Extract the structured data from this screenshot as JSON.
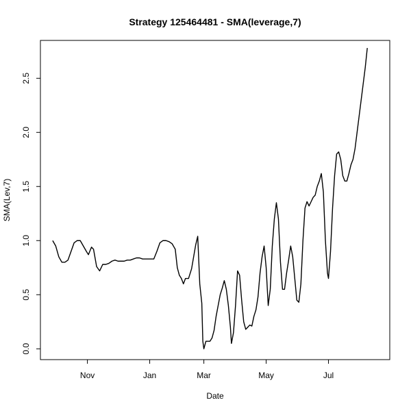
{
  "chart_data": {
    "type": "line",
    "title": "Strategy 125464481 - SMA(leverage,7)",
    "xlabel": "Date",
    "ylabel": "SMA(Lev,7)",
    "x_ticks": [
      "Nov",
      "Jan",
      "Mar",
      "May",
      "Jul"
    ],
    "y_ticks": [
      "0.0",
      "0.5",
      "1.0",
      "1.5",
      "2.0",
      "2.5"
    ],
    "ylim": [
      -0.1,
      2.85
    ],
    "grid": false,
    "series": [
      {
        "values": [
          [
            0,
            1.0
          ],
          [
            3,
            0.95
          ],
          [
            6,
            0.85
          ],
          [
            9,
            0.8
          ],
          [
            12,
            0.8
          ],
          [
            15,
            0.82
          ],
          [
            18,
            0.9
          ],
          [
            21,
            0.98
          ],
          [
            24,
            1.0
          ],
          [
            27,
            1.0
          ],
          [
            30,
            0.95
          ],
          [
            33,
            0.9
          ],
          [
            35,
            0.87
          ],
          [
            38,
            0.94
          ],
          [
            40,
            0.92
          ],
          [
            43,
            0.76
          ],
          [
            46,
            0.72
          ],
          [
            49,
            0.78
          ],
          [
            52,
            0.78
          ],
          [
            55,
            0.79
          ],
          [
            58,
            0.81
          ],
          [
            61,
            0.82
          ],
          [
            64,
            0.81
          ],
          [
            67,
            0.81
          ],
          [
            70,
            0.81
          ],
          [
            73,
            0.82
          ],
          [
            76,
            0.82
          ],
          [
            79,
            0.83
          ],
          [
            82,
            0.84
          ],
          [
            85,
            0.84
          ],
          [
            88,
            0.83
          ],
          [
            91,
            0.83
          ],
          [
            94,
            0.83
          ],
          [
            97,
            0.83
          ],
          [
            99,
            0.83
          ],
          [
            102,
            0.9
          ],
          [
            105,
            0.98
          ],
          [
            108,
            1.0
          ],
          [
            111,
            1.0
          ],
          [
            114,
            0.99
          ],
          [
            117,
            0.97
          ],
          [
            120,
            0.92
          ],
          [
            122,
            0.75
          ],
          [
            124,
            0.68
          ],
          [
            126,
            0.65
          ],
          [
            128,
            0.6
          ],
          [
            130,
            0.65
          ],
          [
            133,
            0.65
          ],
          [
            136,
            0.74
          ],
          [
            138,
            0.85
          ],
          [
            140,
            0.96
          ],
          [
            142,
            1.04
          ],
          [
            144,
            0.6
          ],
          [
            146,
            0.42
          ],
          [
            147,
            0.07
          ],
          [
            148,
            0.0
          ],
          [
            150,
            0.07
          ],
          [
            152,
            0.07
          ],
          [
            154,
            0.07
          ],
          [
            156,
            0.1
          ],
          [
            158,
            0.17
          ],
          [
            160,
            0.3
          ],
          [
            162,
            0.4
          ],
          [
            164,
            0.5
          ],
          [
            166,
            0.56
          ],
          [
            168,
            0.63
          ],
          [
            170,
            0.55
          ],
          [
            172,
            0.4
          ],
          [
            174,
            0.2
          ],
          [
            175,
            0.05
          ],
          [
            177,
            0.15
          ],
          [
            179,
            0.4
          ],
          [
            181,
            0.72
          ],
          [
            183,
            0.68
          ],
          [
            185,
            0.45
          ],
          [
            187,
            0.25
          ],
          [
            189,
            0.18
          ],
          [
            191,
            0.2
          ],
          [
            193,
            0.22
          ],
          [
            195,
            0.21
          ],
          [
            197,
            0.3
          ],
          [
            199,
            0.36
          ],
          [
            201,
            0.48
          ],
          [
            203,
            0.7
          ],
          [
            205,
            0.85
          ],
          [
            207,
            0.95
          ],
          [
            209,
            0.75
          ],
          [
            211,
            0.4
          ],
          [
            213,
            0.55
          ],
          [
            215,
            0.95
          ],
          [
            217,
            1.2
          ],
          [
            219,
            1.35
          ],
          [
            221,
            1.2
          ],
          [
            223,
            0.8
          ],
          [
            225,
            0.55
          ],
          [
            227,
            0.55
          ],
          [
            229,
            0.7
          ],
          [
            231,
            0.82
          ],
          [
            233,
            0.95
          ],
          [
            235,
            0.85
          ],
          [
            237,
            0.65
          ],
          [
            239,
            0.45
          ],
          [
            241,
            0.43
          ],
          [
            243,
            0.6
          ],
          [
            245,
            1.0
          ],
          [
            247,
            1.3
          ],
          [
            249,
            1.36
          ],
          [
            251,
            1.32
          ],
          [
            253,
            1.36
          ],
          [
            255,
            1.4
          ],
          [
            257,
            1.42
          ],
          [
            259,
            1.5
          ],
          [
            261,
            1.55
          ],
          [
            263,
            1.62
          ],
          [
            265,
            1.45
          ],
          [
            267,
            1.0
          ],
          [
            269,
            0.7
          ],
          [
            270,
            0.65
          ],
          [
            272,
            0.9
          ],
          [
            274,
            1.3
          ],
          [
            276,
            1.6
          ],
          [
            278,
            1.8
          ],
          [
            280,
            1.82
          ],
          [
            282,
            1.75
          ],
          [
            284,
            1.6
          ],
          [
            286,
            1.55
          ],
          [
            288,
            1.55
          ],
          [
            290,
            1.62
          ],
          [
            292,
            1.7
          ],
          [
            294,
            1.75
          ],
          [
            296,
            1.85
          ],
          [
            298,
            2.0
          ],
          [
            300,
            2.15
          ],
          [
            302,
            2.3
          ],
          [
            304,
            2.45
          ],
          [
            306,
            2.6
          ],
          [
            308,
            2.78
          ]
        ]
      }
    ],
    "x_tick_positions": [
      {
        "label": "Nov",
        "x": 34
      },
      {
        "label": "Jan",
        "x": 95
      },
      {
        "label": "Mar",
        "x": 148
      },
      {
        "label": "May",
        "x": 209
      },
      {
        "label": "Jul",
        "x": 270
      }
    ],
    "x_range": [
      -12,
      330
    ]
  }
}
